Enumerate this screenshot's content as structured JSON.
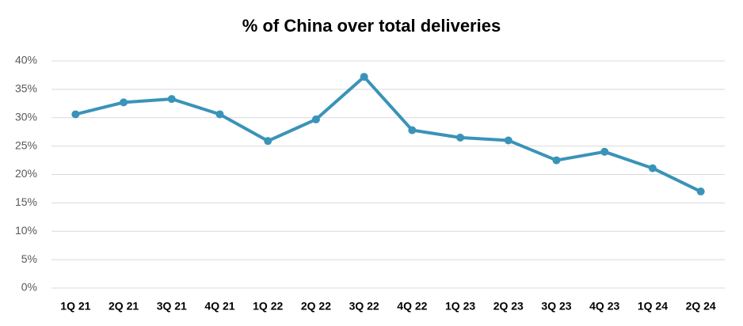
{
  "chart_data": {
    "type": "line",
    "title": "% of China over total deliveries",
    "categories": [
      "1Q 21",
      "2Q 21",
      "3Q 21",
      "4Q 21",
      "1Q 22",
      "2Q 22",
      "3Q 22",
      "4Q 22",
      "1Q 23",
      "2Q 23",
      "3Q 23",
      "4Q 23",
      "1Q 24",
      "2Q 24"
    ],
    "values": [
      30.6,
      32.7,
      33.3,
      30.6,
      25.9,
      29.7,
      37.2,
      27.8,
      26.5,
      26.0,
      22.5,
      24.0,
      21.1,
      17.0
    ],
    "color": "#3a93b8",
    "ylim": [
      0,
      40
    ],
    "yticks": [
      {
        "value": 0,
        "label": "0%"
      },
      {
        "value": 5,
        "label": "5%"
      },
      {
        "value": 10,
        "label": "10%"
      },
      {
        "value": 15,
        "label": "15%"
      },
      {
        "value": 20,
        "label": "20%"
      },
      {
        "value": 25,
        "label": "25%"
      },
      {
        "value": 30,
        "label": "30%"
      },
      {
        "value": 35,
        "label": "35%"
      },
      {
        "value": 40,
        "label": "40%"
      }
    ],
    "grid": true
  }
}
